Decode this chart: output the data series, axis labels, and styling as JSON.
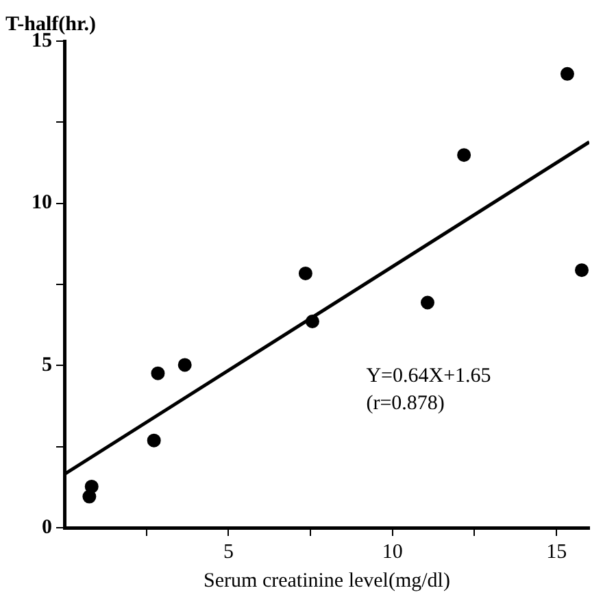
{
  "chart_data": {
    "type": "scatter",
    "xlabel": "Serum creatinine level(mg/dl)",
    "ylabel": "T-half(hr.)",
    "xlim": [
      0,
      16
    ],
    "xticks": [
      {
        "value": 2.5,
        "label": null
      },
      5,
      {
        "value": 7.5,
        "label": null
      },
      10,
      {
        "value": 12.5,
        "label": null
      },
      15
    ],
    "ylim": [
      0,
      15
    ],
    "yticks": [
      0,
      {
        "value": 2.5,
        "label": null
      },
      5,
      {
        "value": 7.5,
        "label": null
      },
      10,
      {
        "value": 12.5,
        "label": null
      },
      15
    ],
    "grid": false,
    "legend": false,
    "marker": "circle",
    "series": [
      {
        "type": "scatter",
        "color": "#000000",
        "x": [
          0.76,
          0.83,
          2.73,
          2.85,
          3.67,
          7.35,
          7.56,
          11.07,
          12.18,
          15.33,
          15.77
        ],
        "values": [
          0.96,
          1.27,
          2.69,
          4.76,
          5.02,
          7.84,
          6.36,
          6.94,
          11.49,
          13.99,
          7.94
        ]
      },
      {
        "type": "line",
        "color": "#000000",
        "line_style": "solid",
        "marker": "none",
        "x": [
          0,
          16
        ],
        "values": [
          1.65,
          11.89
        ]
      }
    ],
    "annotations": [
      "Y=0.64X+1.65",
      "(r=0.878)"
    ]
  }
}
